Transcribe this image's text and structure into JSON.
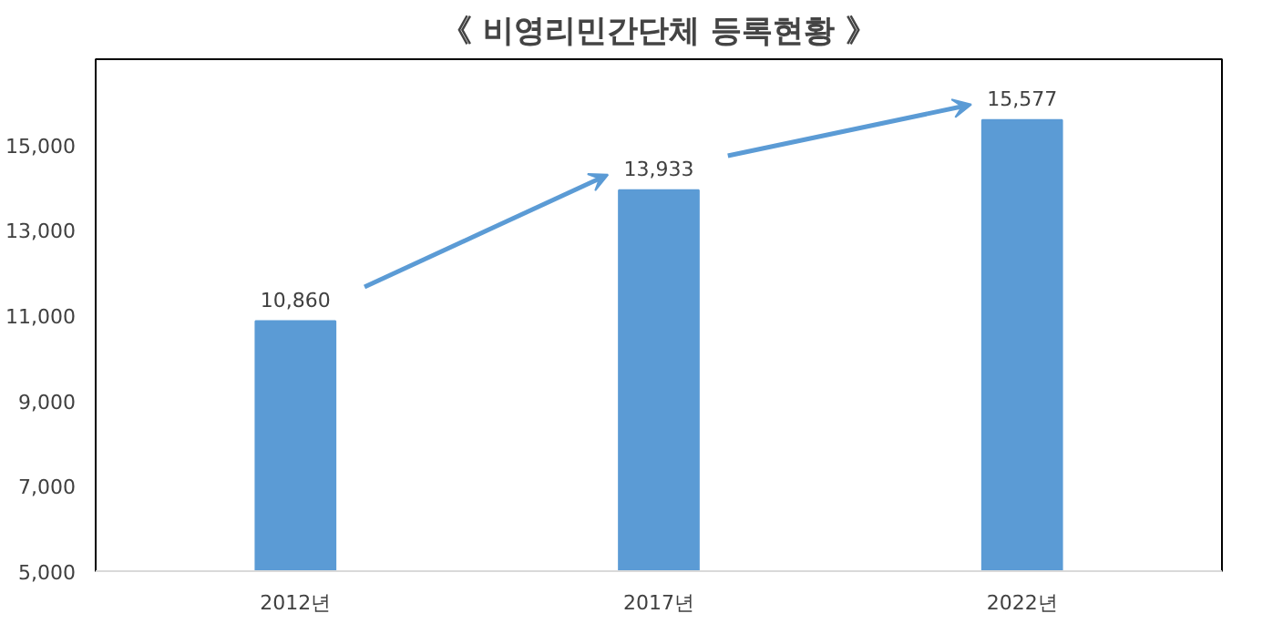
{
  "chart_data": {
    "type": "bar",
    "title": "《 비영리민간단체 등록현황 》",
    "categories": [
      "2012년",
      "2017년",
      "2022년"
    ],
    "values": [
      10860,
      13933,
      15577
    ],
    "color": "#5b9bd5",
    "ylim": [
      5000,
      17000
    ],
    "yticks": [
      {
        "value": 5000,
        "label": "5,000"
      },
      {
        "value": 7000,
        "label": "7,000"
      },
      {
        "value": 9000,
        "label": "9,000"
      },
      {
        "value": 11000,
        "label": "11,000"
      },
      {
        "value": 13000,
        "label": "13,000"
      },
      {
        "value": 15000,
        "label": "15,000"
      }
    ],
    "value_labels": [
      "10,860",
      "13,933",
      "15,577"
    ],
    "grid": false
  }
}
